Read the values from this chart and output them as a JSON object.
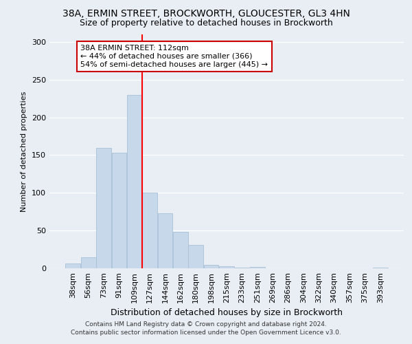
{
  "title": "38A, ERMIN STREET, BROCKWORTH, GLOUCESTER, GL3 4HN",
  "subtitle": "Size of property relative to detached houses in Brockworth",
  "xlabel": "Distribution of detached houses by size in Brockworth",
  "ylabel": "Number of detached properties",
  "bar_labels": [
    "38sqm",
    "56sqm",
    "73sqm",
    "91sqm",
    "109sqm",
    "127sqm",
    "144sqm",
    "162sqm",
    "180sqm",
    "198sqm",
    "215sqm",
    "233sqm",
    "251sqm",
    "269sqm",
    "286sqm",
    "304sqm",
    "322sqm",
    "340sqm",
    "357sqm",
    "375sqm",
    "393sqm"
  ],
  "bar_values": [
    6,
    15,
    160,
    153,
    230,
    100,
    73,
    48,
    31,
    5,
    3,
    1,
    2,
    0,
    0,
    0,
    0,
    0,
    0,
    0,
    1
  ],
  "bar_color": "#c8d8eb",
  "bar_edgecolor": "#a8c0d6",
  "red_line_index": 4,
  "annotation_title": "38A ERMIN STREET: 112sqm",
  "annotation_line1": "← 44% of detached houses are smaller (366)",
  "annotation_line2": "54% of semi-detached houses are larger (445) →",
  "annotation_box_color": "#ffffff",
  "annotation_box_edgecolor": "#cc0000",
  "ylim": [
    0,
    310
  ],
  "yticks": [
    0,
    50,
    100,
    150,
    200,
    250,
    300
  ],
  "footer1": "Contains HM Land Registry data © Crown copyright and database right 2024.",
  "footer2": "Contains public sector information licensed under the Open Government Licence v3.0.",
  "background_color": "#e8eef4",
  "plot_background": "#e8eef4",
  "title_fontsize": 10,
  "subtitle_fontsize": 9
}
